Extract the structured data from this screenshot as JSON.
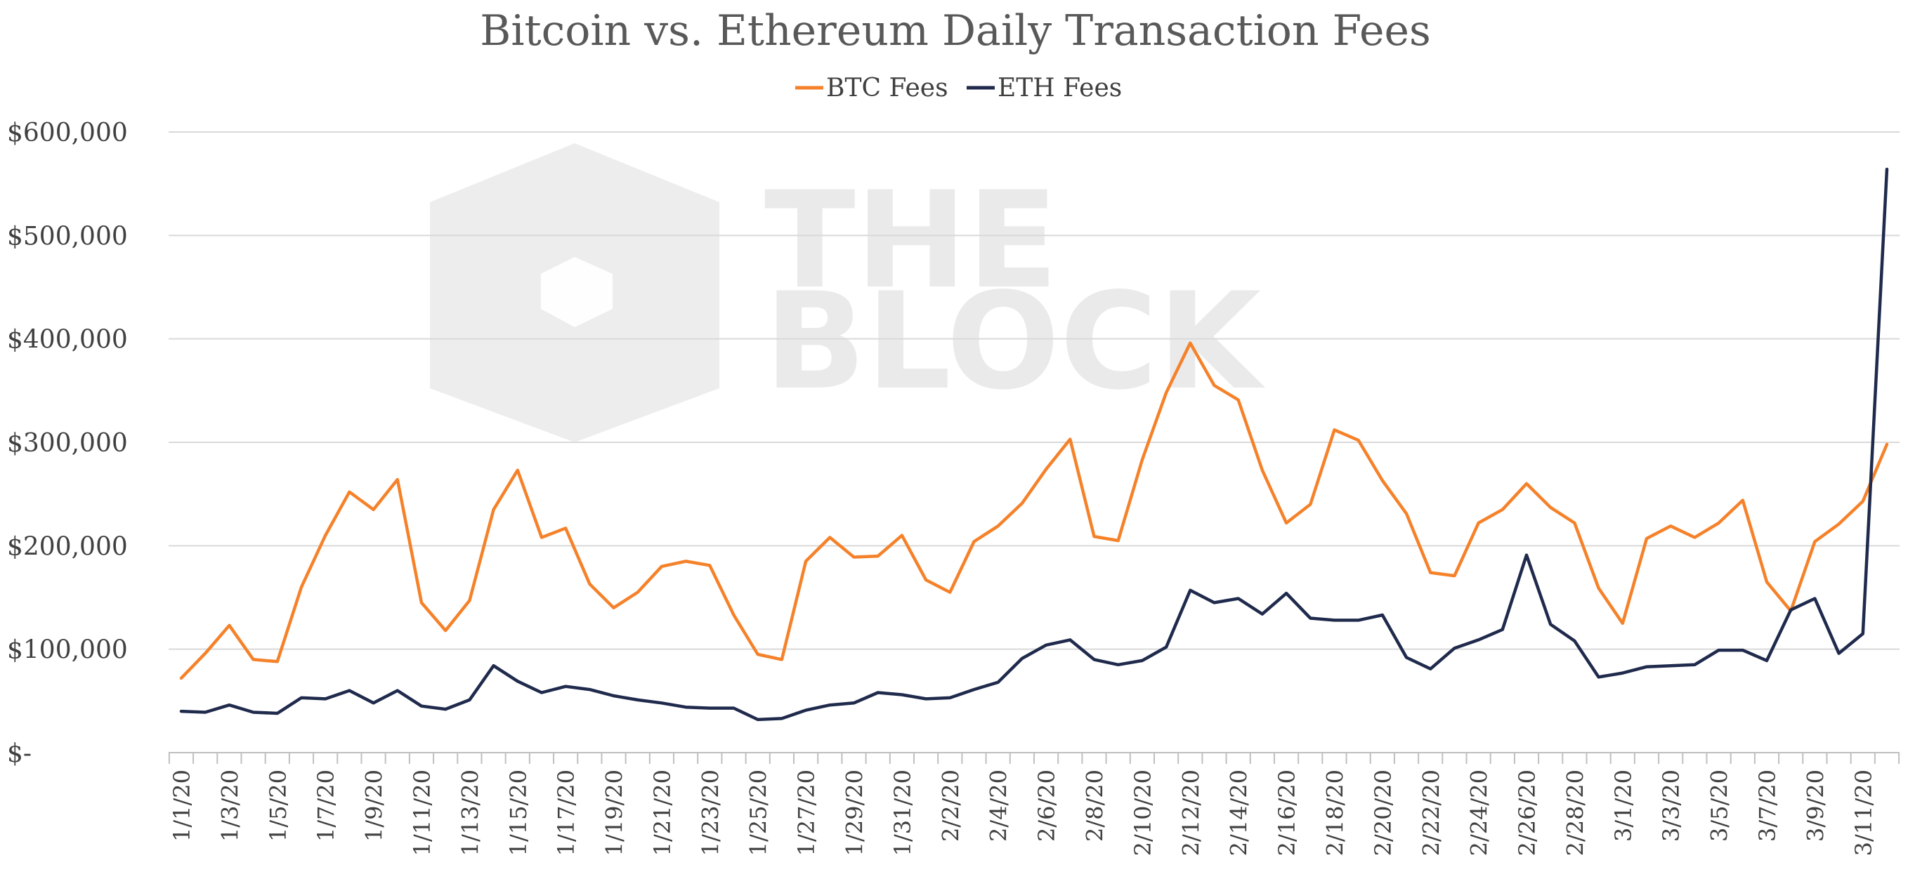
{
  "watermark": {
    "line1": "THE",
    "line2": "BLOCK"
  },
  "chart_data": {
    "type": "line",
    "title": "Bitcoin vs. Ethereum Daily Transaction Fees",
    "xlabel": "",
    "ylabel": "",
    "ylim": [
      0,
      600000
    ],
    "y_ticks": [
      0,
      100000,
      200000,
      300000,
      400000,
      500000,
      600000
    ],
    "y_tick_labels": [
      "$-",
      "$100,000",
      "$200,000",
      "$300,000",
      "$400,000",
      "$500,000",
      "$600,000"
    ],
    "grid": true,
    "legend_position": "top-center",
    "x_tick_labels": [
      "1/1/20",
      "1/3/20",
      "1/5/20",
      "1/7/20",
      "1/9/20",
      "1/11/20",
      "1/13/20",
      "1/15/20",
      "1/17/20",
      "1/19/20",
      "1/21/20",
      "1/23/20",
      "1/25/20",
      "1/27/20",
      "1/29/20",
      "1/31/20",
      "2/2/20",
      "2/4/20",
      "2/6/20",
      "2/8/20",
      "2/10/20",
      "2/12/20",
      "2/14/20",
      "2/16/20",
      "2/18/20",
      "2/20/20",
      "2/22/20",
      "2/24/20",
      "2/26/20",
      "2/28/20",
      "3/1/20",
      "3/3/20",
      "3/5/20",
      "3/7/20",
      "3/9/20",
      "3/11/20"
    ],
    "series": [
      {
        "name": "BTC Fees",
        "color": "#f5822a",
        "values": [
          72000,
          96000,
          123000,
          90000,
          88000,
          160000,
          210000,
          252000,
          235000,
          264000,
          145000,
          118000,
          147000,
          235000,
          273000,
          208000,
          217000,
          163000,
          140000,
          155000,
          180000,
          185000,
          181000,
          133000,
          95000,
          90000,
          185000,
          208000,
          189000,
          190000,
          210000,
          167000,
          155000,
          204000,
          219000,
          241000,
          274000,
          303000,
          209000,
          205000,
          283000,
          348000,
          396000,
          355000,
          341000,
          273000,
          222000,
          240000,
          312000,
          302000,
          263000,
          231000,
          174000,
          171000,
          222000,
          235000,
          260000,
          237000,
          222000,
          159000,
          125000,
          207000,
          219000,
          208000,
          222000,
          244000,
          165000,
          137000,
          204000,
          221000,
          243000,
          298000
        ]
      },
      {
        "name": "ETH Fees",
        "color": "#1f2a4c",
        "values": [
          40000,
          39000,
          46000,
          39000,
          38000,
          53000,
          52000,
          60000,
          48000,
          60000,
          45000,
          42000,
          51000,
          84000,
          69000,
          58000,
          64000,
          61000,
          55000,
          51000,
          48000,
          44000,
          43000,
          43000,
          32000,
          33000,
          41000,
          46000,
          48000,
          58000,
          56000,
          52000,
          53000,
          61000,
          68000,
          91000,
          104000,
          109000,
          90000,
          85000,
          89000,
          102000,
          157000,
          145000,
          149000,
          134000,
          154000,
          130000,
          128000,
          128000,
          133000,
          92000,
          81000,
          101000,
          109000,
          119000,
          191000,
          124000,
          108000,
          73000,
          77000,
          83000,
          84000,
          85000,
          99000,
          99000,
          89000,
          138000,
          149000,
          96000,
          115000,
          564000
        ]
      }
    ]
  }
}
